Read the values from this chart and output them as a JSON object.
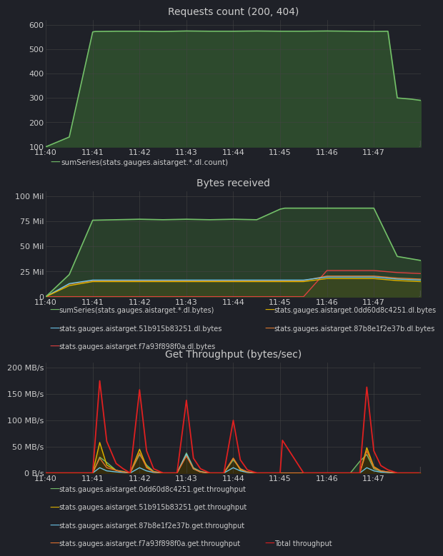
{
  "bg_color": "#1f2128",
  "panel_bg": "#1f2128",
  "grid_color": "#444444",
  "text_color": "#cccccc",
  "title_color": "#cccccc",
  "chart1": {
    "title": "Requests count (200, 404)",
    "ylim": [
      100,
      620
    ],
    "yticks": [
      100,
      200,
      300,
      400,
      500,
      600
    ],
    "xtick_labels": [
      "11:40",
      "11:41",
      "11:42",
      "11:43",
      "11:44",
      "11:45",
      "11:46",
      "11:47"
    ],
    "line_color": "#73bf69",
    "fill_color": "#2d4a2d",
    "legend_label": "sumSeries(stats.gauges.aistarget.*.dl.count)",
    "x": [
      0,
      0.5,
      1.0,
      1.05,
      1.5,
      2,
      2.5,
      3,
      3.5,
      4,
      4.5,
      5,
      5.5,
      6,
      6.5,
      7,
      7.3,
      7.5,
      7.8,
      8
    ],
    "y": [
      100,
      140,
      570,
      572,
      573,
      573,
      572,
      574,
      573,
      573,
      574,
      573,
      573,
      574,
      573,
      572,
      573,
      300,
      295,
      290
    ]
  },
  "chart2": {
    "title": "Bytes received",
    "ylim": [
      0,
      105000000
    ],
    "ytick_vals": [
      0,
      25000000,
      50000000,
      75000000,
      100000000
    ],
    "ytick_labels": [
      "0",
      "25 Mil",
      "50 Mil",
      "75 Mil",
      "100 Mil"
    ],
    "xtick_labels": [
      "11:40",
      "11:41",
      "11:42",
      "11:43",
      "11:44",
      "11:45",
      "11:46",
      "11:47"
    ],
    "series": {
      "sum": {
        "color": "#73bf69",
        "fill": "#2d4a2d",
        "label": "sumSeries(stats.gauges.aistarget.*.dl.bytes)",
        "x": [
          0,
          0.5,
          1.0,
          1.5,
          2,
          2.5,
          3,
          3.5,
          4,
          4.5,
          5,
          5.1,
          5.5,
          6,
          6.5,
          7,
          7.5,
          8
        ],
        "y": [
          0,
          22000000,
          76000000,
          76500000,
          77000000,
          76500000,
          77000000,
          76500000,
          77000000,
          76500000,
          87000000,
          88000000,
          88000000,
          88000000,
          88000000,
          88000000,
          40000000,
          36000000
        ]
      },
      "s0dd": {
        "color": "#e0b400",
        "fill": "#5a3e00",
        "label": "stats.gauges.aistarget.0dd60d8c4251.dl.bytes",
        "x": [
          0,
          0.5,
          1.0,
          1.5,
          2,
          2.5,
          3,
          3.5,
          4,
          4.5,
          5,
          5.5,
          6,
          6.5,
          7,
          7.5,
          8
        ],
        "y": [
          0,
          11000000,
          15000000,
          15000000,
          15000000,
          15000000,
          15000000,
          15000000,
          15000000,
          15000000,
          15000000,
          15000000,
          18000000,
          18000000,
          18000000,
          16000000,
          15000000
        ]
      },
      "s51b": {
        "color": "#6bc4e8",
        "label": "stats.gauges.aistarget.51b915b83251.dl.bytes",
        "x": [
          0,
          0.5,
          1.0,
          1.5,
          2,
          2.5,
          3,
          3.5,
          4,
          4.5,
          5,
          5.5,
          6,
          6.5,
          7,
          7.5,
          8
        ],
        "y": [
          0,
          13000000,
          16500000,
          16500000,
          16500000,
          16500000,
          16500000,
          16500000,
          16500000,
          16500000,
          16500000,
          16500000,
          19500000,
          19500000,
          19500000,
          17500000,
          16500000
        ]
      },
      "s87b": {
        "color": "#e07a30",
        "label": "stats.gauges.aistarget.87b8e1f2e37b.dl.bytes",
        "x": [
          0,
          0.5,
          1.0,
          1.5,
          2,
          2.5,
          3,
          3.5,
          4,
          4.5,
          5,
          5.5,
          6,
          6.5,
          7,
          7.5,
          8
        ],
        "y": [
          0,
          12500000,
          16000000,
          16000000,
          16000000,
          16000000,
          16000000,
          16000000,
          16000000,
          16000000,
          16000000,
          16000000,
          20500000,
          20500000,
          20500000,
          18500000,
          17500000
        ]
      },
      "sf7a": {
        "color": "#e04040",
        "label": "stats.gauges.aistarget.f7a93f898f0a.dl.bytes",
        "x": [
          0,
          0.5,
          1.0,
          1.5,
          2,
          2.5,
          3,
          3.5,
          4,
          4.5,
          5,
          5.1,
          5.5,
          6,
          6.5,
          7,
          7.5,
          8
        ],
        "y": [
          0,
          0,
          0,
          0,
          0,
          0,
          0,
          0,
          0,
          0,
          0,
          0,
          0,
          26000000,
          26000000,
          26000000,
          24000000,
          23000000
        ]
      }
    }
  },
  "chart3": {
    "title": "Get Throughput (bytes/sec)",
    "ylim": [
      0,
      210000000
    ],
    "ytick_vals": [
      0,
      50000000,
      100000000,
      150000000,
      200000000
    ],
    "ytick_labels": [
      "0 B/s",
      "50 MB/s",
      "100 MB/s",
      "150 MB/s",
      "200 MB/s"
    ],
    "xtick_labels": [
      "11:40",
      "11:41",
      "11:42",
      "11:43",
      "11:44",
      "11:45",
      "11:46",
      "11:47"
    ],
    "series": {
      "s0dd": {
        "color": "#73bf69",
        "fill": "#2a3a2a",
        "label": "stats.gauges.aistarget.0dd60d8c4251.get.throughput",
        "x": [
          0,
          1,
          1.15,
          1.3,
          1.5,
          1.65,
          1.8,
          2,
          2.15,
          2.3,
          2.5,
          2.65,
          2.8,
          3,
          3.15,
          3.3,
          3.5,
          3.65,
          3.8,
          4,
          4.15,
          4.3,
          4.5,
          4.65,
          4.8,
          5,
          5.5,
          6,
          6.5,
          6.7,
          6.85,
          7,
          7.15,
          7.3,
          7.5,
          7.7,
          7.85,
          8
        ],
        "y": [
          0,
          0,
          30000000,
          20000000,
          5000000,
          3000000,
          0,
          35000000,
          15000000,
          3000000,
          0,
          0,
          0,
          38000000,
          10000000,
          3000000,
          0,
          0,
          0,
          25000000,
          8000000,
          2000000,
          0,
          0,
          0,
          0,
          0,
          0,
          0,
          22000000,
          35000000,
          8000000,
          3000000,
          1000000,
          0,
          0,
          0,
          0
        ]
      },
      "s51b": {
        "color": "#e0b400",
        "fill": "#4a3a00",
        "label": "stats.gauges.aistarget.51b915b83251.get.throughput",
        "x": [
          0,
          1,
          1.15,
          1.3,
          1.5,
          1.65,
          1.8,
          2,
          2.15,
          2.3,
          2.5,
          2.65,
          2.8,
          3,
          3.15,
          3.3,
          3.5,
          3.65,
          3.8,
          4,
          4.15,
          4.3,
          4.5,
          4.65,
          4.8,
          5,
          5.5,
          6,
          6.5,
          6.7,
          6.85,
          7,
          7.15,
          7.3,
          7.5,
          7.7,
          7.85,
          8
        ],
        "y": [
          0,
          0,
          58000000,
          15000000,
          5000000,
          2000000,
          0,
          45000000,
          12000000,
          2000000,
          0,
          0,
          0,
          35000000,
          8000000,
          2000000,
          0,
          0,
          0,
          28000000,
          6000000,
          2000000,
          0,
          0,
          0,
          0,
          0,
          0,
          0,
          0,
          48000000,
          12000000,
          4000000,
          2000000,
          0,
          0,
          0,
          0
        ]
      },
      "s87b": {
        "color": "#6bc4e8",
        "label": "stats.gauges.aistarget.87b8e1f2e37b.get.throughput",
        "x": [
          0,
          1,
          1.15,
          1.3,
          1.5,
          1.65,
          1.8,
          2,
          2.15,
          2.3,
          2.5,
          2.65,
          2.8,
          3,
          3.15,
          3.3,
          3.5,
          3.65,
          3.8,
          4,
          4.15,
          4.3,
          4.5,
          4.65,
          4.8,
          5,
          5.5,
          6,
          6.5,
          6.7,
          6.85,
          7,
          7.15,
          7.3,
          7.5,
          7.7,
          7.85,
          8
        ],
        "y": [
          0,
          0,
          10000000,
          4000000,
          2000000,
          1000000,
          0,
          10000000,
          4000000,
          1000000,
          0,
          0,
          0,
          36000000,
          8000000,
          2000000,
          0,
          0,
          0,
          10000000,
          4000000,
          1000000,
          0,
          0,
          0,
          0,
          0,
          0,
          0,
          0,
          10000000,
          4000000,
          1500000,
          1000000,
          0,
          0,
          0,
          0
        ]
      },
      "sf7a": {
        "color": "#e07030",
        "fill": "#3a2500",
        "label": "stats.gauges.aistarget.f7a93f898f0a.get.throughput",
        "x": [
          0,
          1,
          1.15,
          1.3,
          1.5,
          1.65,
          1.8,
          2,
          2.15,
          2.3,
          2.5,
          2.65,
          2.8,
          3,
          3.15,
          3.3,
          3.5,
          3.65,
          3.8,
          4,
          4.15,
          4.3,
          4.5,
          4.65,
          4.8,
          5,
          5.5,
          6,
          6.5,
          6.7,
          6.85,
          7,
          7.15,
          7.3,
          7.5,
          7.7,
          7.85,
          8
        ],
        "y": [
          0,
          0,
          28000000,
          10000000,
          5000000,
          2000000,
          0,
          38000000,
          10000000,
          2000000,
          0,
          0,
          0,
          32000000,
          8000000,
          2000000,
          0,
          0,
          0,
          28000000,
          8000000,
          2000000,
          0,
          0,
          0,
          0,
          0,
          0,
          0,
          0,
          42000000,
          10000000,
          4000000,
          2000000,
          0,
          0,
          0,
          0
        ]
      },
      "total": {
        "color": "#e02020",
        "label": "Total throughput",
        "x": [
          0,
          1,
          1.15,
          1.3,
          1.5,
          1.65,
          1.8,
          2,
          2.15,
          2.3,
          2.5,
          2.65,
          2.8,
          3,
          3.15,
          3.3,
          3.5,
          3.65,
          3.8,
          4,
          4.15,
          4.3,
          4.5,
          4.65,
          4.8,
          5,
          5.05,
          5.5,
          6,
          6.3,
          6.5,
          6.7,
          6.85,
          7,
          7.15,
          7.3,
          7.5,
          7.7,
          7.85,
          8
        ],
        "y": [
          0,
          0,
          175000000,
          60000000,
          18000000,
          8000000,
          0,
          158000000,
          42000000,
          8000000,
          0,
          0,
          0,
          138000000,
          28000000,
          8000000,
          0,
          0,
          0,
          100000000,
          25000000,
          6000000,
          0,
          0,
          0,
          0,
          62000000,
          0,
          0,
          0,
          0,
          0,
          163000000,
          42000000,
          14000000,
          6000000,
          0,
          0,
          0,
          0
        ]
      }
    }
  },
  "xtick_positions": [
    0,
    1,
    2,
    3,
    4,
    5,
    6,
    7
  ],
  "xmin": 0,
  "xmax": 8
}
